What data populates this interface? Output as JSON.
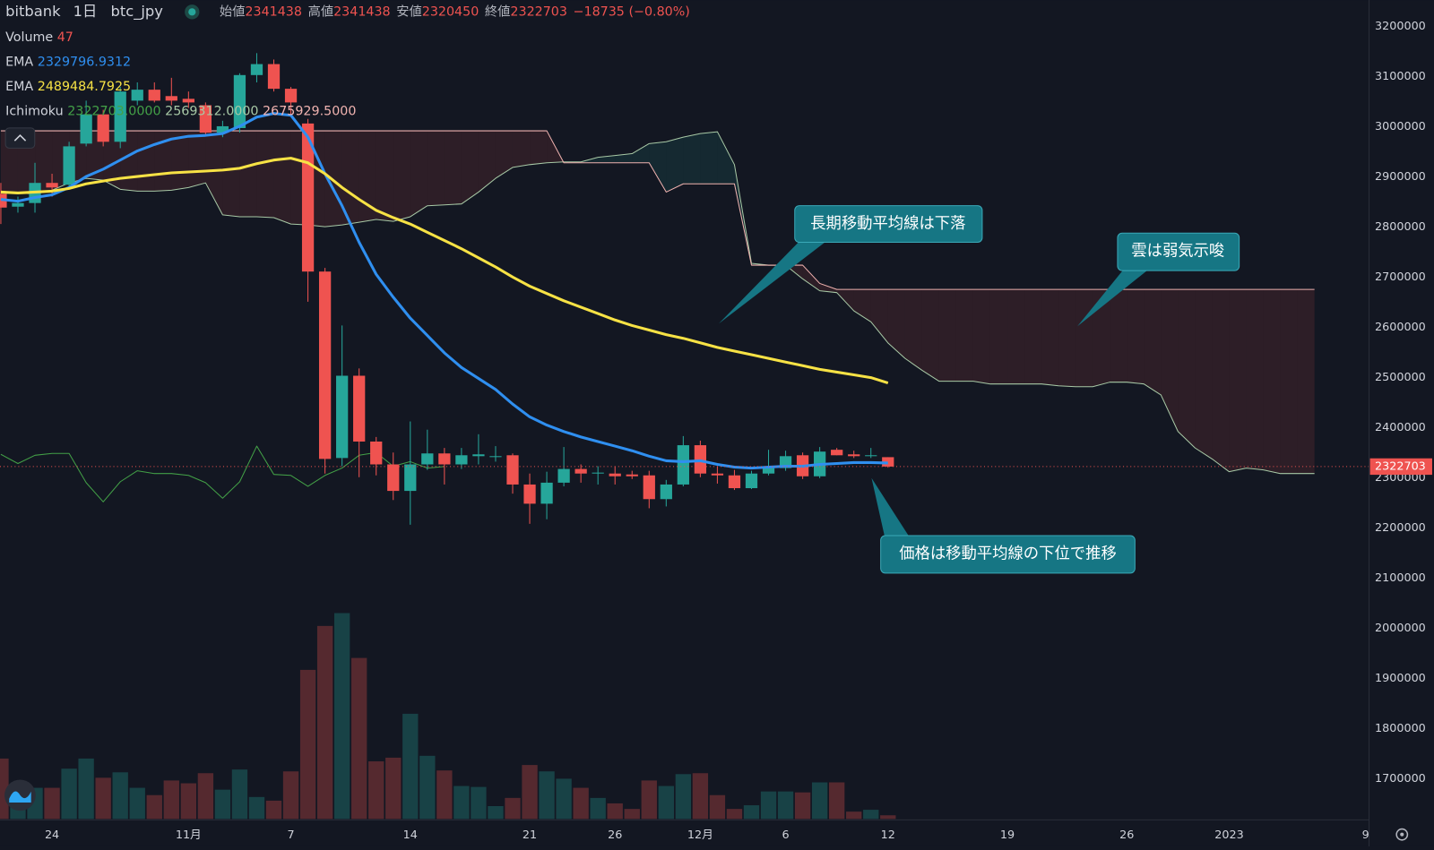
{
  "chart_data": {
    "type": "candlestick",
    "title": "bitbank",
    "interval": "1日",
    "symbol": "btc_jpy",
    "ohlc_labels": [
      "始値",
      "高値",
      "安値",
      "終値"
    ],
    "change": {
      "value": -18735,
      "label": "−18735"
    },
    "change_pct": {
      "value": -0.8,
      "label": "(−0.80%)"
    },
    "up_color": "#26a69a",
    "down_color": "#ef5350",
    "xlim": [
      -0.05,
      80.2
    ],
    "xticks": [
      {
        "value": 3,
        "label": "24"
      },
      {
        "value": 11,
        "label": "11月"
      },
      {
        "value": 17,
        "label": "7"
      },
      {
        "value": 24,
        "label": "14"
      },
      {
        "value": 31,
        "label": "21"
      },
      {
        "value": 36,
        "label": "26"
      },
      {
        "value": 41,
        "label": "12月"
      },
      {
        "value": 46,
        "label": "6"
      },
      {
        "value": 52,
        "label": "12"
      },
      {
        "value": 59,
        "label": "19"
      },
      {
        "value": 66,
        "label": "26"
      },
      {
        "value": 72,
        "label": "2023"
      },
      {
        "value": 80,
        "label": "9"
      }
    ],
    "ylim": [
      1620000,
      3253000
    ],
    "yticks": [
      1700000,
      1800000,
      1900000,
      2000000,
      2100000,
      2200000,
      2300000,
      2400000,
      2500000,
      2600000,
      2700000,
      2800000,
      2900000,
      3000000,
      3100000,
      3200000
    ],
    "grid": false,
    "open": [
      2866480,
      2840960,
      2848250,
      2888350,
      2884700,
      2966710,
      3025040,
      2970360,
      3052380,
      3074240,
      3061480,
      3056030,
      3043260,
      2988580,
      2997700,
      3103400,
      3125280,
      3076070,
      3006810,
      2711570,
      2339770,
      2503830,
      2372580,
      2327020,
      2274160,
      2327020,
      2348900,
      2327020,
      2343430,
      2343430,
      2345250,
      2286920,
      2248650,
      2290570,
      2317910,
      2310630,
      2308790,
      2306970,
      2305140,
      2257770,
      2286920,
      2365300,
      2308790,
      2305140,
      2279640,
      2308790,
      2319730,
      2345250,
      2303320,
      2356190,
      2347070,
      2345250,
      2341438
    ],
    "high": [
      2888350,
      2860990,
      2928450,
      2906580,
      2970360,
      3052380,
      3034150,
      3079710,
      3088830,
      3088830,
      3097930,
      3070600,
      3048790,
      3012280,
      3107050,
      3147150,
      3134390,
      3079710,
      3015930,
      2718860,
      2604040,
      2518410,
      2381690,
      2350720,
      2412680,
      2396280,
      2359830,
      2359830,
      2387160,
      2363480,
      2348900,
      2308790,
      2312460,
      2361660,
      2327020,
      2323370,
      2323370,
      2314260,
      2314260,
      2296030,
      2383520,
      2374410,
      2323370,
      2316080,
      2314260,
      2356190,
      2354370,
      2350720,
      2361660,
      2359830,
      2354370,
      2359830,
      2341438
    ],
    "low": [
      2806340,
      2829040,
      2829040,
      2860990,
      2879240,
      2961250,
      2961250,
      2957600,
      3043260,
      3048790,
      3043260,
      3037800,
      2983110,
      2979480,
      2988580,
      3088830,
      3070600,
      3025040,
      2651430,
      2308790,
      2323370,
      2301500,
      2305140,
      2255940,
      2206730,
      2316080,
      2286920,
      2317910,
      2327020,
      2332490,
      2268700,
      2208550,
      2217660,
      2283280,
      2290570,
      2286920,
      2286920,
      2297850,
      2239540,
      2243190,
      2283280,
      2301500,
      2288750,
      2276000,
      2277820,
      2305140,
      2314260,
      2297850,
      2299670,
      2345250,
      2339770,
      2339770,
      2320450
    ],
    "close": [
      2839140,
      2848250,
      2888350,
      2879240,
      2961250,
      3025040,
      2970360,
      3070600,
      3074240,
      3052380,
      3052380,
      3048790,
      2988580,
      3001340,
      3103400,
      3125280,
      3076070,
      3048790,
      2711570,
      2337950,
      2503830,
      2372580,
      2327020,
      2274160,
      2327020,
      2348900,
      2327020,
      2345250,
      2347070,
      2343430,
      2286920,
      2248650,
      2290570,
      2317910,
      2308790,
      2310630,
      2303320,
      2303320,
      2257770,
      2286920,
      2365300,
      2308790,
      2305140,
      2279640,
      2308790,
      2319730,
      2343430,
      2303320,
      2352540,
      2345250,
      2343430,
      2345250,
      2322703
    ],
    "volume": {
      "name": "Volume",
      "ylim": [
        0,
        2700
      ],
      "values": [
        776,
        400,
        400,
        400,
        646,
        776,
        529,
        599,
        400,
        306,
        494,
        458,
        588,
        376,
        635,
        282,
        235,
        611,
        1915,
        2479,
        2644,
        2068,
        740,
        787,
        1351,
        811,
        623,
        423,
        411,
        165,
        270,
        693,
        611,
        517,
        400,
        270,
        200,
        129,
        494,
        423,
        576,
        588,
        306,
        129,
        176,
        353,
        353,
        341,
        470,
        470,
        94,
        118,
        47
      ]
    },
    "ema": [
      {
        "name": "EMA",
        "color": "#2f8ff0",
        "values": [
          2855500,
          2851900,
          2859200,
          2864700,
          2879200,
          2901100,
          2915700,
          2933900,
          2952100,
          2964900,
          2975800,
          2981300,
          2983100,
          2986800,
          3001300,
          3019600,
          3026900,
          3023200,
          2979500,
          2906600,
          2842800,
          2769900,
          2706100,
          2660500,
          2618600,
          2584000,
          2549400,
          2520200,
          2498300,
          2476500,
          2447300,
          2421800,
          2405400,
          2392600,
          2381700,
          2372600,
          2363500,
          2354300,
          2343400,
          2334300,
          2332500,
          2334300,
          2327000,
          2321600,
          2319700,
          2321600,
          2323400,
          2323400,
          2327000,
          2328800,
          2330700,
          2330700,
          2329796.9312
        ]
      },
      {
        "name": "EMA",
        "color": "#f7e245",
        "values": [
          2870100,
          2868300,
          2870100,
          2871900,
          2877400,
          2886500,
          2892000,
          2897500,
          2901100,
          2904800,
          2908400,
          2910200,
          2912000,
          2913900,
          2917500,
          2926700,
          2933900,
          2937600,
          2928400,
          2906600,
          2879200,
          2855500,
          2833700,
          2819100,
          2806300,
          2789900,
          2773500,
          2757100,
          2738900,
          2720700,
          2700600,
          2682400,
          2667800,
          2653300,
          2640600,
          2627800,
          2615000,
          2604000,
          2594900,
          2585800,
          2578500,
          2569400,
          2560300,
          2553000,
          2545700,
          2538400,
          2531100,
          2523900,
          2516600,
          2511100,
          2505600,
          2500100,
          2489484.7925
        ]
      }
    ],
    "ichimoku": {
      "name": "Ichimoku",
      "value_labels": [
        "2322703.0000",
        "2569312.0000",
        "2675929.5000"
      ],
      "lagging_color": "#43a047",
      "span_a_color": "#a8c9a6",
      "span_b_color": "#f0b3b0",
      "lagging": [
        2347100,
        2328800,
        2345200,
        2348900,
        2348900,
        2290600,
        2252300,
        2292400,
        2314300,
        2308800,
        2308800,
        2305100,
        2290600,
        2259600,
        2292400,
        2363500,
        2307000,
        2305100,
        2283300,
        2305100,
        2319700,
        2345200,
        2350700,
        2323400,
        2332500,
        2319700,
        2322703
      ],
      "span_a": [
        2871900,
        2868300,
        2866500,
        2873800,
        2888400,
        2897500,
        2893800,
        2875600,
        2871900,
        2871900,
        2873800,
        2879200,
        2888400,
        2824600,
        2820900,
        2820900,
        2819100,
        2806300,
        2804500,
        2800900,
        2804500,
        2810000,
        2815500,
        2811800,
        2820900,
        2842800,
        2844600,
        2846400,
        2870100,
        2897500,
        2919300,
        2924800,
        2928400,
        2930300,
        2930300,
        2939400,
        2943000,
        2946700,
        2966700,
        2970400,
        2979500,
        2986800,
        2990400,
        2924800,
        2728000,
        2724300,
        2724300,
        2697000,
        2673300,
        2669600,
        2633200,
        2611300,
        2569312,
        2538400,
        2514700,
        2492800,
        2492800,
        2492800,
        2487400,
        2487400,
        2487400,
        2487400,
        2483800,
        2481900,
        2481900,
        2491000,
        2491000,
        2487400,
        2465500,
        2392600,
        2359800,
        2337900,
        2312400,
        2319700,
        2316100,
        2308800,
        2308800,
        2308800
      ],
      "span_b": [
        2992200,
        2992200,
        2992200,
        2992200,
        2992200,
        2992200,
        2992200,
        2992200,
        2992200,
        2992200,
        2992200,
        2992200,
        2992200,
        2992200,
        2992200,
        2992200,
        2992200,
        2992200,
        2992200,
        2992200,
        2992200,
        2992200,
        2992200,
        2992200,
        2992200,
        2992200,
        2992200,
        2992200,
        2992200,
        2992200,
        2992200,
        2992200,
        2992200,
        2928400,
        2928400,
        2928400,
        2928400,
        2928400,
        2928400,
        2870100,
        2886500,
        2886500,
        2886500,
        2886500,
        2724300,
        2724300,
        2724300,
        2724300,
        2687900,
        2675929.5,
        2675929.5,
        2675929.5,
        2675929.5,
        2675929.5,
        2675929.5,
        2675929.5,
        2675929.5,
        2675929.5,
        2675929.5,
        2675929.5,
        2675929.5,
        2675929.5,
        2675929.5,
        2675929.5,
        2675929.5,
        2675929.5,
        2675929.5,
        2675929.5,
        2675929.5,
        2675929.5,
        2675929.5,
        2675929.5,
        2675929.5,
        2675929.5,
        2675929.5,
        2675929.5,
        2675929.5,
        2675929.5
      ]
    },
    "annotations": [
      {
        "text": "長期移動平均線は下落"
      },
      {
        "text": "雲は弱気示唆"
      },
      {
        "text": "価格は移動平均線の下位で推移"
      }
    ]
  }
}
